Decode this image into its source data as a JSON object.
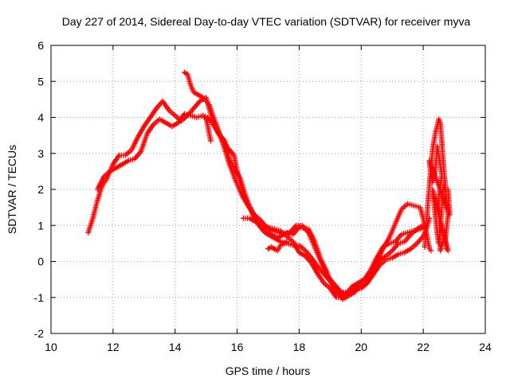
{
  "chart_data": {
    "type": "scatter",
    "title": "Day 227 of 2014, Sidereal Day-to-day VTEC variation (SDTVAR) for receiver myva",
    "xlabel": "GPS time / hours",
    "ylabel": "SDTVAR / TECUs",
    "xlim": [
      10,
      24
    ],
    "ylim": [
      -2,
      6
    ],
    "x_ticks": [
      10,
      12,
      14,
      16,
      18,
      20,
      22,
      24
    ],
    "y_ticks": [
      -2,
      -1,
      0,
      1,
      2,
      3,
      4,
      5,
      6
    ],
    "x_tick_labels": [
      "10",
      "12",
      "14",
      "16",
      "18",
      "20",
      "22",
      "24"
    ],
    "y_tick_labels": [
      "-2",
      "-1",
      "0",
      "1",
      "2",
      "3",
      "4",
      "5",
      "6"
    ],
    "grid": true,
    "marker": "+",
    "series": [
      {
        "name": "track-a",
        "color": "#ff0000",
        "points": [
          [
            11.2,
            0.8
          ],
          [
            11.35,
            1.2
          ],
          [
            11.5,
            1.7
          ],
          [
            11.65,
            2.1
          ],
          [
            11.8,
            2.3
          ],
          [
            12.0,
            2.7
          ],
          [
            12.2,
            2.95
          ],
          [
            12.4,
            2.95
          ],
          [
            12.6,
            3.1
          ],
          [
            12.8,
            3.45
          ],
          [
            13.0,
            3.75
          ],
          [
            13.2,
            4.0
          ],
          [
            13.4,
            4.25
          ],
          [
            13.6,
            4.45
          ],
          [
            13.8,
            4.2
          ],
          [
            14.0,
            4.05
          ],
          [
            14.2,
            3.9
          ],
          [
            14.4,
            4.05
          ],
          [
            14.6,
            4.25
          ],
          [
            14.8,
            4.45
          ],
          [
            15.0,
            4.55
          ],
          [
            15.15,
            4.1
          ],
          [
            15.3,
            3.75
          ],
          [
            15.5,
            3.4
          ],
          [
            15.7,
            3.15
          ],
          [
            15.9,
            2.95
          ],
          [
            16.0,
            2.5
          ],
          [
            16.2,
            1.9
          ],
          [
            16.4,
            1.5
          ],
          [
            16.6,
            1.15
          ],
          [
            16.8,
            0.95
          ],
          [
            17.0,
            0.8
          ],
          [
            17.3,
            0.65
          ],
          [
            17.6,
            0.8
          ],
          [
            17.8,
            0.75
          ],
          [
            18.0,
            0.95
          ],
          [
            18.3,
            0.9
          ],
          [
            18.5,
            0.55
          ],
          [
            18.7,
            0.05
          ],
          [
            18.9,
            -0.3
          ],
          [
            19.1,
            -0.75
          ],
          [
            19.3,
            -0.9
          ],
          [
            19.5,
            -0.85
          ],
          [
            19.7,
            -0.8
          ],
          [
            19.9,
            -0.75
          ],
          [
            20.1,
            -0.65
          ],
          [
            20.3,
            -0.45
          ],
          [
            20.5,
            0.0
          ],
          [
            20.7,
            0.35
          ],
          [
            20.9,
            0.65
          ],
          [
            21.1,
            1.05
          ],
          [
            21.3,
            1.45
          ],
          [
            21.5,
            1.6
          ],
          [
            21.7,
            1.55
          ],
          [
            21.9,
            1.5
          ],
          [
            22.0,
            1.2
          ],
          [
            22.1,
            0.8
          ],
          [
            22.2,
            0.35
          ],
          [
            22.25,
            0.3
          ]
        ]
      },
      {
        "name": "track-b",
        "color": "#ff0000",
        "points": [
          [
            11.5,
            2.0
          ],
          [
            11.7,
            2.35
          ],
          [
            11.9,
            2.5
          ],
          [
            12.1,
            2.6
          ],
          [
            12.3,
            2.7
          ],
          [
            12.5,
            2.8
          ],
          [
            12.7,
            2.85
          ],
          [
            12.9,
            3.05
          ],
          [
            13.1,
            3.55
          ],
          [
            13.3,
            3.8
          ],
          [
            13.5,
            3.95
          ],
          [
            13.7,
            3.85
          ],
          [
            13.9,
            3.75
          ],
          [
            14.1,
            3.85
          ],
          [
            14.3,
            4.1
          ],
          [
            14.5,
            4.05
          ],
          [
            14.7,
            4.0
          ],
          [
            14.9,
            4.05
          ],
          [
            15.05,
            4.0
          ],
          [
            15.2,
            3.85
          ],
          [
            15.4,
            3.55
          ],
          [
            15.6,
            3.35
          ],
          [
            15.75,
            2.85
          ],
          [
            15.9,
            2.6
          ],
          [
            16.1,
            2.3
          ],
          [
            16.3,
            1.75
          ],
          [
            16.5,
            1.35
          ],
          [
            16.7,
            1.0
          ],
          [
            16.9,
            0.8
          ],
          [
            17.1,
            0.7
          ],
          [
            17.4,
            0.55
          ],
          [
            17.6,
            0.5
          ],
          [
            17.8,
            0.45
          ],
          [
            18.0,
            0.45
          ],
          [
            18.2,
            0.3
          ],
          [
            18.4,
            0.1
          ],
          [
            18.6,
            -0.15
          ],
          [
            18.8,
            -0.35
          ],
          [
            19.0,
            -0.55
          ],
          [
            19.2,
            -0.75
          ],
          [
            19.4,
            -1.05
          ],
          [
            19.6,
            -0.95
          ],
          [
            19.8,
            -0.85
          ],
          [
            20.0,
            -0.55
          ],
          [
            20.2,
            -0.45
          ],
          [
            20.4,
            -0.25
          ],
          [
            20.6,
            0.05
          ],
          [
            20.8,
            0.15
          ],
          [
            21.0,
            0.3
          ],
          [
            21.2,
            0.5
          ],
          [
            21.4,
            0.55
          ],
          [
            21.6,
            0.75
          ],
          [
            21.8,
            0.9
          ],
          [
            22.0,
            1.0
          ],
          [
            22.1,
            0.95
          ]
        ]
      },
      {
        "name": "track-c",
        "color": "#ff0000",
        "points": [
          [
            14.3,
            5.25
          ],
          [
            14.4,
            5.2
          ],
          [
            14.5,
            4.9
          ],
          [
            14.6,
            4.7
          ],
          [
            14.7,
            4.65
          ],
          [
            14.8,
            4.6
          ],
          [
            14.9,
            4.55
          ],
          [
            15.0,
            4.45
          ],
          [
            15.1,
            4.35
          ],
          [
            15.2,
            4.1
          ],
          [
            15.35,
            3.75
          ],
          [
            15.55,
            3.25
          ],
          [
            15.75,
            2.7
          ],
          [
            15.95,
            2.25
          ],
          [
            16.15,
            1.85
          ],
          [
            16.35,
            1.55
          ],
          [
            16.55,
            1.3
          ],
          [
            16.75,
            1.15
          ],
          [
            16.95,
            0.95
          ],
          [
            17.15,
            0.85
          ],
          [
            17.35,
            0.8
          ],
          [
            17.5,
            0.75
          ],
          [
            17.7,
            0.8
          ],
          [
            17.9,
            1.0
          ],
          [
            18.1,
            1.0
          ],
          [
            18.3,
            0.8
          ],
          [
            18.5,
            0.4
          ],
          [
            18.7,
            0.0
          ],
          [
            18.9,
            -0.4
          ],
          [
            19.1,
            -0.6
          ],
          [
            19.3,
            -0.8
          ],
          [
            19.5,
            -0.95
          ],
          [
            19.7,
            -0.7
          ],
          [
            19.9,
            -0.6
          ],
          [
            20.1,
            -0.5
          ],
          [
            20.3,
            -0.25
          ],
          [
            20.5,
            0.1
          ],
          [
            20.7,
            0.4
          ],
          [
            20.9,
            0.5
          ],
          [
            21.1,
            0.55
          ],
          [
            21.3,
            0.75
          ],
          [
            21.5,
            0.8
          ],
          [
            21.7,
            0.85
          ],
          [
            21.9,
            0.9
          ],
          [
            22.0,
            0.95
          ]
        ]
      },
      {
        "name": "track-d",
        "color": "#ff0000",
        "points": [
          [
            16.2,
            1.2
          ],
          [
            16.4,
            1.2
          ],
          [
            16.6,
            1.1
          ],
          [
            16.8,
            1.0
          ],
          [
            17.0,
            0.95
          ],
          [
            17.2,
            0.9
          ],
          [
            17.4,
            0.85
          ],
          [
            17.6,
            0.7
          ],
          [
            17.8,
            0.55
          ],
          [
            18.0,
            0.25
          ],
          [
            18.2,
            0.15
          ],
          [
            18.4,
            -0.05
          ],
          [
            18.6,
            -0.35
          ],
          [
            18.8,
            -0.6
          ],
          [
            19.0,
            -0.75
          ],
          [
            19.2,
            -1.0
          ],
          [
            19.4,
            -1.0
          ],
          [
            19.6,
            -0.85
          ],
          [
            19.8,
            -0.75
          ],
          [
            20.0,
            -0.75
          ],
          [
            20.2,
            -0.6
          ],
          [
            20.4,
            -0.35
          ],
          [
            20.6,
            -0.1
          ],
          [
            20.8,
            0.05
          ],
          [
            21.0,
            0.1
          ],
          [
            21.2,
            0.2
          ],
          [
            21.4,
            0.25
          ],
          [
            21.6,
            0.35
          ],
          [
            21.8,
            0.5
          ],
          [
            22.0,
            0.7
          ],
          [
            22.1,
            0.9
          ],
          [
            22.2,
            1.2
          ]
        ]
      },
      {
        "name": "track-e",
        "color": "#ff0000",
        "points": [
          [
            17.0,
            0.35
          ],
          [
            17.1,
            0.4
          ],
          [
            17.2,
            0.35
          ],
          [
            17.3,
            0.3
          ],
          [
            17.4,
            0.45
          ],
          [
            17.5,
            0.5
          ],
          [
            17.6,
            0.55
          ]
        ]
      },
      {
        "name": "track-f",
        "color": "#ff0000",
        "points": [
          [
            14.9,
            4.05
          ],
          [
            15.0,
            3.95
          ],
          [
            15.05,
            3.8
          ],
          [
            15.1,
            3.55
          ],
          [
            15.15,
            3.35
          ]
        ]
      },
      {
        "name": "spike",
        "color": "#ff0000",
        "points": [
          [
            22.05,
            0.4
          ],
          [
            22.1,
            1.0
          ],
          [
            22.15,
            1.6
          ],
          [
            22.2,
            2.1
          ],
          [
            22.25,
            2.6
          ],
          [
            22.3,
            3.1
          ],
          [
            22.35,
            3.35
          ],
          [
            22.4,
            3.6
          ],
          [
            22.45,
            3.75
          ],
          [
            22.5,
            3.95
          ],
          [
            22.55,
            3.85
          ],
          [
            22.6,
            3.3
          ],
          [
            22.65,
            2.7
          ],
          [
            22.7,
            2.2
          ],
          [
            22.75,
            1.7
          ],
          [
            22.8,
            1.3
          ],
          [
            22.75,
            0.9
          ],
          [
            22.7,
            0.55
          ],
          [
            22.75,
            0.35
          ],
          [
            22.8,
            0.3
          ],
          [
            22.3,
            2.0
          ],
          [
            22.35,
            1.6
          ],
          [
            22.4,
            1.2
          ],
          [
            22.45,
            0.8
          ],
          [
            22.5,
            0.5
          ],
          [
            22.55,
            0.9
          ],
          [
            22.6,
            1.5
          ],
          [
            22.65,
            2.1
          ],
          [
            22.7,
            2.0
          ],
          [
            22.8,
            2.0
          ],
          [
            22.85,
            1.3
          ],
          [
            22.2,
            2.8
          ],
          [
            22.25,
            2.4
          ],
          [
            22.3,
            2.2
          ],
          [
            22.4,
            2.6
          ],
          [
            22.45,
            3.2
          ],
          [
            22.6,
            2.4
          ],
          [
            22.5,
            1.8
          ],
          [
            22.55,
            0.3
          ],
          [
            22.65,
            0.6
          ]
        ]
      }
    ]
  }
}
